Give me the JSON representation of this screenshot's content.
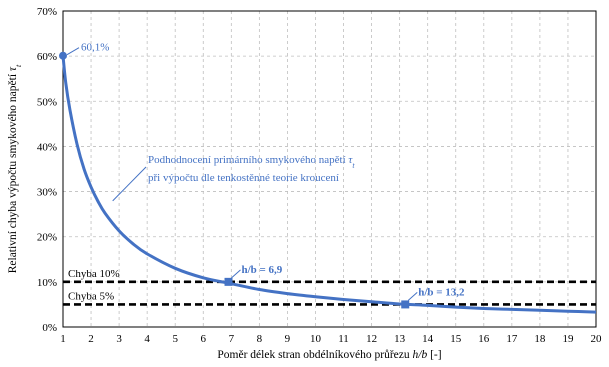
{
  "chart_data": {
    "type": "line",
    "xlabel_main": "Poměr délek stran obdélníkového průřezu ",
    "xlabel_var": "h/b",
    "xlabel_unit": " [-]",
    "ylabel_main": "Relativní chyba výpočtu smykového napětí ",
    "ylabel_var": "τ",
    "ylabel_sub": "t",
    "xlim": [
      1,
      20
    ],
    "ylim": [
      0,
      70
    ],
    "x_ticks": [
      "1",
      "2",
      "3",
      "4",
      "5",
      "6",
      "7",
      "8",
      "9",
      "10",
      "11",
      "12",
      "13",
      "14",
      "15",
      "16",
      "17",
      "18",
      "19",
      "20"
    ],
    "y_ticks": [
      "0%",
      "10%",
      "20%",
      "30%",
      "40%",
      "50%",
      "60%",
      "70%"
    ],
    "grid": true,
    "series": [
      {
        "color": "#4472c4",
        "x": [
          1,
          1.1,
          1.25,
          1.5,
          1.75,
          2,
          2.25,
          2.5,
          3,
          3.5,
          4,
          5,
          6,
          7,
          8,
          9,
          10,
          11,
          12,
          13,
          14,
          15,
          16,
          17,
          18,
          19,
          20
        ],
        "y": [
          60.1,
          54.0,
          48.0,
          40.5,
          35.0,
          31.0,
          27.8,
          25.2,
          21.3,
          18.4,
          16.2,
          13.0,
          10.9,
          9.6,
          8.3,
          7.4,
          6.7,
          6.1,
          5.6,
          5.1,
          4.8,
          4.4,
          4.1,
          3.9,
          3.7,
          3.5,
          3.3
        ]
      }
    ],
    "thresholds": [
      {
        "label": "Chyba 10%",
        "value": 10,
        "color": "#000000"
      },
      {
        "label": "Chyba 5%",
        "value": 5,
        "color": "#000000"
      }
    ],
    "markers": [
      {
        "x": 1,
        "y": 60.1,
        "shape": "circle",
        "label": "60,1%"
      },
      {
        "x": 6.9,
        "y": 10,
        "shape": "square",
        "label": "h/b = 6,9"
      },
      {
        "x": 13.2,
        "y": 5,
        "shape": "square",
        "label": "h/b = 13,2"
      }
    ],
    "annotation": {
      "line1": "Podhodnocení primárního smykového napětí ",
      "line1_var": "τ",
      "line1_sub": "t",
      "line2": "při výpočtu dle tenkostěnné teorie kroucení",
      "x": 2.7,
      "y": 27.5
    }
  }
}
